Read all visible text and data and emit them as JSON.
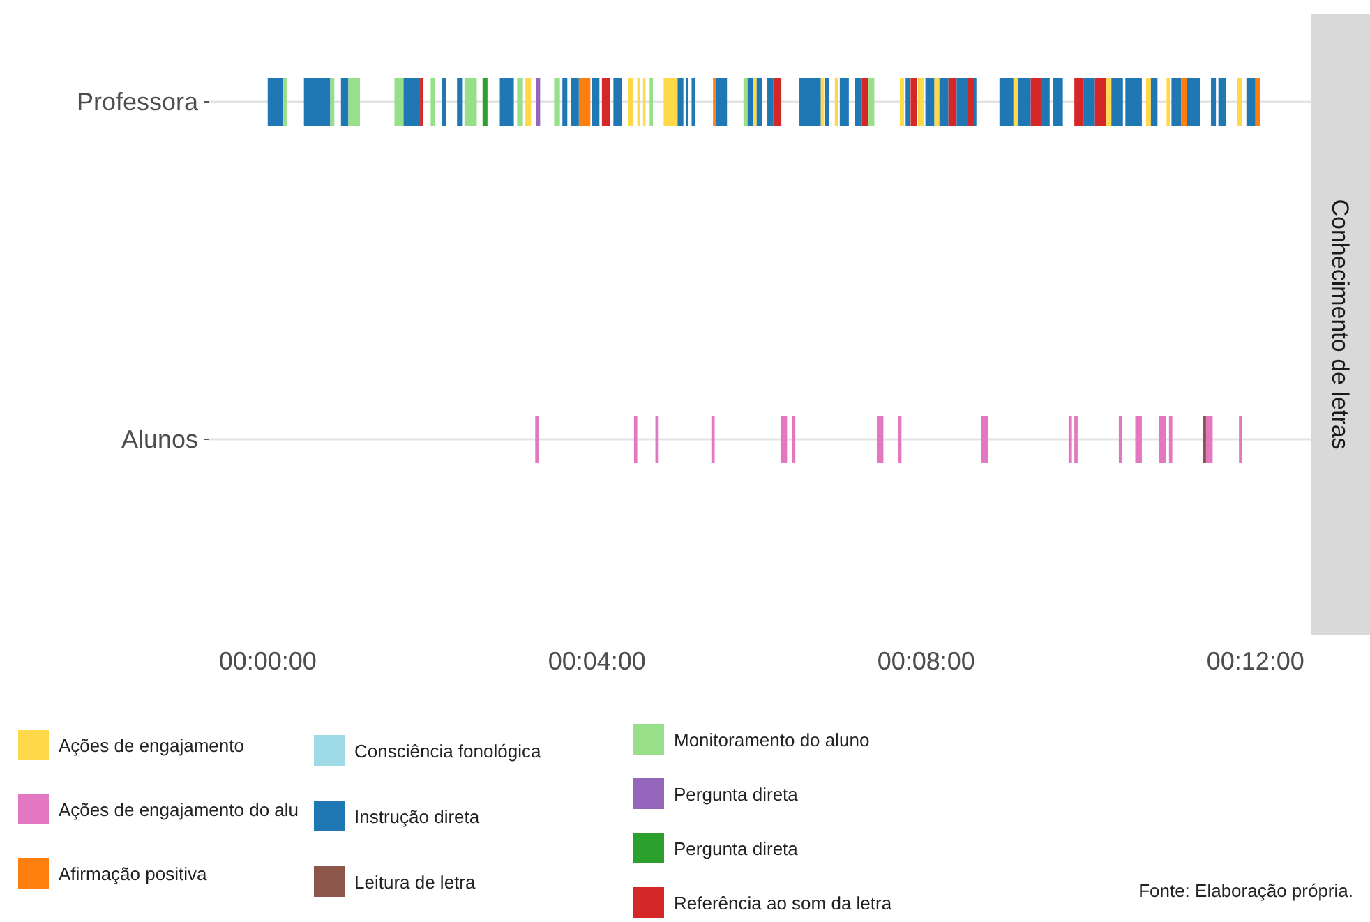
{
  "chart_data": {
    "type": "bar",
    "orientation": "horizontal",
    "title": "Conhecimento de letras",
    "categories": [
      "Professora",
      "Alunos"
    ],
    "xlim": [
      -0.71,
      12.68
    ],
    "xticks": [
      {
        "value": 0,
        "label": "00:00:00"
      },
      {
        "value": 4,
        "label": "00:04:00"
      },
      {
        "value": 8,
        "label": "00:08:00"
      },
      {
        "value": 12,
        "label": "00:12:00"
      }
    ],
    "grid": "y",
    "legend": "bottom",
    "annotations": [
      "Fonte: Elaboração própria."
    ],
    "series": [
      {
        "name": "Ações de engajamento",
        "color": "#ffd94a",
        "values": [
          0.07,
          null
        ],
        "base": [
          3.13,
          null
        ]
      },
      {
        "name": "Ações de engajamento do alu",
        "color": "#e377c2",
        "values": [
          null,
          0.04
        ],
        "base": [
          null,
          3.25
        ]
      },
      {
        "name": "Afirmação positiva",
        "color": "#ff7f0e",
        "values": [
          0.14,
          null
        ],
        "base": [
          3.78,
          null
        ]
      },
      {
        "name": "Consciência fonológica",
        "color": "#9edae5",
        "values": [
          null,
          null
        ],
        "base": [
          null,
          null
        ]
      },
      {
        "name": "Instrução direta",
        "color": "#1f77b4",
        "values": [
          0.19,
          null
        ],
        "base": [
          0,
          null
        ]
      },
      {
        "name": "Leitura de letra",
        "color": "#8c564b",
        "values": [
          null,
          0.04
        ],
        "base": [
          null,
          11.36
        ]
      },
      {
        "name": "Monitoramento do aluno",
        "color": "#98df8a",
        "values": [
          0.04,
          null
        ],
        "base": [
          0.19,
          null
        ]
      },
      {
        "name": "Pergunta direta",
        "color": "#9467bd",
        "values": [
          0.05,
          null
        ],
        "base": [
          3.26,
          null
        ]
      },
      {
        "name": "Pergunta direta",
        "color": "#2ca02c",
        "values": [
          0.06,
          null
        ],
        "base": [
          2.61,
          null
        ]
      },
      {
        "name": "Referência ao som da letra",
        "color": "#d62728",
        "values": [
          0.04,
          null
        ],
        "base": [
          1.85,
          null
        ]
      },
      {
        "color": "#1f77b4",
        "values": [
          0.32,
          null
        ],
        "base": [
          0.44,
          null
        ]
      },
      {
        "color": "#98df8a",
        "values": [
          0.05,
          null
        ],
        "base": [
          0.76,
          null
        ]
      },
      {
        "color": "#1f77b4",
        "values": [
          0.09,
          null
        ],
        "base": [
          0.89,
          null
        ]
      },
      {
        "color": "#98df8a",
        "values": [
          0.14,
          null
        ],
        "base": [
          0.98,
          null
        ]
      },
      {
        "color": "#98df8a",
        "values": [
          0.11,
          null
        ],
        "base": [
          1.54,
          null
        ]
      },
      {
        "color": "#1f77b4",
        "values": [
          0.2,
          null
        ],
        "base": [
          1.65,
          null
        ]
      },
      {
        "color": "#98df8a",
        "values": [
          0.05,
          null
        ],
        "base": [
          1.98,
          null
        ]
      },
      {
        "color": "#1f77b4",
        "values": [
          0.05,
          null
        ],
        "base": [
          2.12,
          null
        ]
      },
      {
        "color": "#1f77b4",
        "values": [
          0.07,
          null
        ],
        "base": [
          2.3,
          null
        ]
      },
      {
        "color": "#98df8a",
        "values": [
          0.15,
          null
        ],
        "base": [
          2.39,
          null
        ]
      },
      {
        "color": "#1f77b4",
        "values": [
          0.17,
          null
        ],
        "base": [
          2.82,
          null
        ]
      },
      {
        "color": "#98df8a",
        "values": [
          0.07,
          null
        ],
        "base": [
          3.03,
          null
        ]
      },
      {
        "color": "#98df8a",
        "values": [
          0.07,
          null
        ],
        "base": [
          3.48,
          null
        ]
      },
      {
        "color": "#1f77b4",
        "values": [
          0.06,
          null
        ],
        "base": [
          3.58,
          null
        ]
      },
      {
        "color": "#1f77b4",
        "values": [
          0.1,
          null
        ],
        "base": [
          3.68,
          null
        ]
      },
      {
        "color": "#1f77b4",
        "values": [
          0.09,
          null
        ],
        "base": [
          3.94,
          null
        ]
      },
      {
        "color": "#d62728",
        "values": [
          0.1,
          null
        ],
        "base": [
          4.06,
          null
        ]
      },
      {
        "color": "#1f77b4",
        "values": [
          0.1,
          null
        ],
        "base": [
          4.2,
          null
        ]
      },
      {
        "color": "#ffd94a",
        "values": [
          0.06,
          null
        ],
        "base": [
          4.38,
          null
        ]
      },
      {
        "color": "#ffd94a",
        "values": [
          0.03,
          null
        ],
        "base": [
          4.49,
          null
        ]
      },
      {
        "color": "#ffd94a",
        "values": [
          0.03,
          null
        ],
        "base": [
          4.56,
          null
        ]
      },
      {
        "color": "#98df8a",
        "values": [
          0.04,
          null
        ],
        "base": [
          4.64,
          null
        ]
      },
      {
        "color": "#ffd94a",
        "values": [
          0.17,
          null
        ],
        "base": [
          4.81,
          null
        ]
      },
      {
        "color": "#1f77b4",
        "values": [
          0.07,
          null
        ],
        "base": [
          4.98,
          null
        ]
      },
      {
        "color": "#1f77b4",
        "values": [
          0.03,
          null
        ],
        "base": [
          5.08,
          null
        ]
      },
      {
        "color": "#1f77b4",
        "values": [
          0.04,
          null
        ],
        "base": [
          5.15,
          null
        ]
      },
      {
        "color": "#ff7f0e",
        "values": [
          0.03,
          null
        ],
        "base": [
          5.41,
          null
        ]
      },
      {
        "color": "#1f77b4",
        "values": [
          0.14,
          null
        ],
        "base": [
          5.44,
          null
        ]
      },
      {
        "color": "#98df8a",
        "values": [
          0.05,
          null
        ],
        "base": [
          5.78,
          null
        ]
      },
      {
        "color": "#1f77b4",
        "values": [
          0.07,
          null
        ],
        "base": [
          5.83,
          null
        ]
      },
      {
        "color": "#ffd94a",
        "values": [
          0.04,
          null
        ],
        "base": [
          5.9,
          null
        ]
      },
      {
        "color": "#1f77b4",
        "values": [
          0.07,
          null
        ],
        "base": [
          5.94,
          null
        ]
      },
      {
        "color": "#1f77b4",
        "values": [
          0.07,
          null
        ],
        "base": [
          6.07,
          null
        ]
      },
      {
        "color": "#d62728",
        "values": [
          0.1,
          null
        ],
        "base": [
          6.14,
          null
        ]
      },
      {
        "color": "#1f77b4",
        "values": [
          0.26,
          null
        ],
        "base": [
          6.46,
          null
        ]
      },
      {
        "color": "#ffd94a",
        "values": [
          0.04,
          null
        ],
        "base": [
          6.72,
          null
        ]
      },
      {
        "color": "#1f77b4",
        "values": [
          0.05,
          null
        ],
        "base": [
          6.77,
          null
        ]
      },
      {
        "color": "#ffd94a",
        "values": [
          0.04,
          null
        ],
        "base": [
          6.89,
          null
        ]
      },
      {
        "color": "#1f77b4",
        "values": [
          0.11,
          null
        ],
        "base": [
          6.95,
          null
        ]
      },
      {
        "color": "#1f77b4",
        "values": [
          0.09,
          null
        ],
        "base": [
          7.13,
          null
        ]
      },
      {
        "color": "#d62728",
        "values": [
          0.08,
          null
        ],
        "base": [
          7.22,
          null
        ]
      },
      {
        "color": "#98df8a",
        "values": [
          0.07,
          null
        ],
        "base": [
          7.3,
          null
        ]
      },
      {
        "color": "#ffd94a",
        "values": [
          0.05,
          null
        ],
        "base": [
          7.68,
          null
        ]
      },
      {
        "color": "#1f77b4",
        "values": [
          0.05,
          null
        ],
        "base": [
          7.75,
          null
        ]
      },
      {
        "color": "#d62728",
        "values": [
          0.08,
          null
        ],
        "base": [
          7.81,
          null
        ]
      },
      {
        "color": "#ffd94a",
        "values": [
          0.07,
          null
        ],
        "base": [
          7.9,
          null
        ]
      },
      {
        "color": "#1f77b4",
        "values": [
          0.11,
          null
        ],
        "base": [
          7.99,
          null
        ]
      },
      {
        "color": "#ffd94a",
        "values": [
          0.06,
          null
        ],
        "base": [
          8.1,
          null
        ]
      },
      {
        "color": "#1f77b4",
        "values": [
          0.11,
          null
        ],
        "base": [
          8.16,
          null
        ]
      },
      {
        "color": "#d62728",
        "values": [
          0.1,
          null
        ],
        "base": [
          8.27,
          null
        ]
      },
      {
        "color": "#1f77b4",
        "values": [
          0.14,
          null
        ],
        "base": [
          8.37,
          null
        ]
      },
      {
        "color": "#d62728",
        "values": [
          0.07,
          null
        ],
        "base": [
          8.51,
          null
        ]
      },
      {
        "color": "#1f77b4",
        "values": [
          0.03,
          null
        ],
        "base": [
          8.58,
          null
        ]
      },
      {
        "color": "#1f77b4",
        "values": [
          0.17,
          null
        ],
        "base": [
          8.89,
          null
        ]
      },
      {
        "color": "#ffd94a",
        "values": [
          0.06,
          null
        ],
        "base": [
          9.06,
          null
        ]
      },
      {
        "color": "#1f77b4",
        "values": [
          0.15,
          null
        ],
        "base": [
          9.12,
          null
        ]
      },
      {
        "color": "#d62728",
        "values": [
          0.13,
          null
        ],
        "base": [
          9.27,
          null
        ]
      },
      {
        "color": "#1f77b4",
        "values": [
          0.1,
          null
        ],
        "base": [
          9.4,
          null
        ]
      },
      {
        "color": "#1f77b4",
        "values": [
          0.12,
          null
        ],
        "base": [
          9.54,
          null
        ]
      },
      {
        "color": "#d62728",
        "values": [
          0.11,
          null
        ],
        "base": [
          9.8,
          null
        ]
      },
      {
        "color": "#1f77b4",
        "values": [
          0.14,
          null
        ],
        "base": [
          9.91,
          null
        ]
      },
      {
        "color": "#d62728",
        "values": [
          0.14,
          null
        ],
        "base": [
          10.05,
          null
        ]
      },
      {
        "color": "#ffd94a",
        "values": [
          0.06,
          null
        ],
        "base": [
          10.19,
          null
        ]
      },
      {
        "color": "#1f77b4",
        "values": [
          0.14,
          null
        ],
        "base": [
          10.25,
          null
        ]
      },
      {
        "color": "#1f77b4",
        "values": [
          0.2,
          null
        ],
        "base": [
          10.42,
          null
        ]
      },
      {
        "color": "#ffd94a",
        "values": [
          0.06,
          null
        ],
        "base": [
          10.67,
          null
        ]
      },
      {
        "color": "#1f77b4",
        "values": [
          0.08,
          null
        ],
        "base": [
          10.73,
          null
        ]
      },
      {
        "color": "#ffd94a",
        "values": [
          0.04,
          null
        ],
        "base": [
          10.92,
          null
        ]
      },
      {
        "color": "#1f77b4",
        "values": [
          0.12,
          null
        ],
        "base": [
          10.98,
          null
        ]
      },
      {
        "color": "#ff7f0e",
        "values": [
          0.07,
          null
        ],
        "base": [
          11.1,
          null
        ]
      },
      {
        "color": "#1f77b4",
        "values": [
          0.16,
          null
        ],
        "base": [
          11.17,
          null
        ]
      },
      {
        "color": "#1f77b4",
        "values": [
          0.06,
          null
        ],
        "base": [
          11.46,
          null
        ]
      },
      {
        "color": "#1f77b4",
        "values": [
          0.09,
          null
        ],
        "base": [
          11.55,
          null
        ]
      },
      {
        "color": "#ffd94a",
        "values": [
          0.06,
          null
        ],
        "base": [
          11.78,
          null
        ]
      },
      {
        "color": "#1f77b4",
        "values": [
          0.11,
          null
        ],
        "base": [
          11.89,
          null
        ]
      },
      {
        "color": "#ff7f0e",
        "values": [
          0.06,
          null
        ],
        "base": [
          12.0,
          null
        ]
      },
      {
        "color": "#e377c2",
        "values": [
          null,
          0.04
        ],
        "base": [
          null,
          4.45
        ]
      },
      {
        "color": "#e377c2",
        "values": [
          null,
          0.04
        ],
        "base": [
          null,
          4.71
        ]
      },
      {
        "color": "#e377c2",
        "values": [
          null,
          0.04
        ],
        "base": [
          null,
          5.39
        ]
      },
      {
        "color": "#e377c2",
        "values": [
          null,
          0.08
        ],
        "base": [
          null,
          6.23
        ]
      },
      {
        "color": "#e377c2",
        "values": [
          null,
          0.04
        ],
        "base": [
          null,
          6.37
        ]
      },
      {
        "color": "#e377c2",
        "values": [
          null,
          0.08
        ],
        "base": [
          null,
          7.4
        ]
      },
      {
        "color": "#e377c2",
        "values": [
          null,
          0.04
        ],
        "base": [
          null,
          7.66
        ]
      },
      {
        "color": "#e377c2",
        "values": [
          null,
          0.08
        ],
        "base": [
          null,
          8.67
        ]
      },
      {
        "color": "#e377c2",
        "values": [
          null,
          0.04
        ],
        "base": [
          null,
          9.73
        ]
      },
      {
        "color": "#e377c2",
        "values": [
          null,
          0.04
        ],
        "base": [
          null,
          9.8
        ]
      },
      {
        "color": "#e377c2",
        "values": [
          null,
          0.04
        ],
        "base": [
          null,
          10.34
        ]
      },
      {
        "color": "#e377c2",
        "values": [
          null,
          0.08
        ],
        "base": [
          null,
          10.54
        ]
      },
      {
        "color": "#e377c2",
        "values": [
          null,
          0.08
        ],
        "base": [
          null,
          10.83
        ]
      },
      {
        "color": "#e377c2",
        "values": [
          null,
          0.04
        ],
        "base": [
          null,
          10.95
        ]
      },
      {
        "color": "#e377c2",
        "values": [
          null,
          0.08
        ],
        "base": [
          null,
          11.4
        ]
      },
      {
        "color": "#e377c2",
        "values": [
          null,
          0.04
        ],
        "base": [
          null,
          11.8
        ]
      }
    ]
  }
}
